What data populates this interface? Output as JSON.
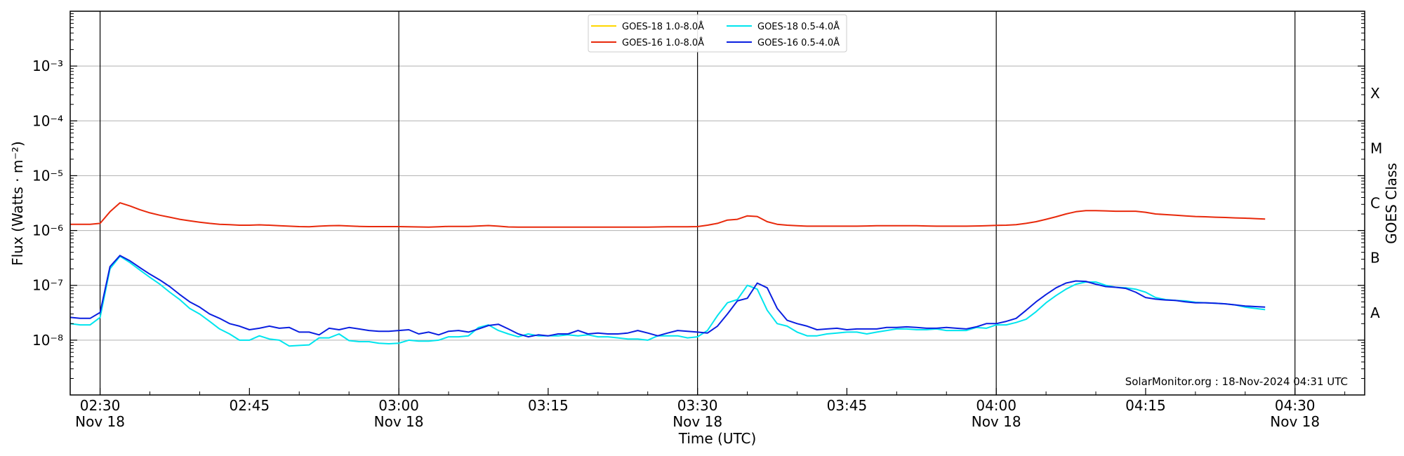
{
  "chart_data": {
    "type": "line",
    "ylabel": "Flux (Watts · m⁻²)",
    "ylabel_right": "GOES Class",
    "xlabel": "Time (UTC)",
    "y_scale": "log",
    "ylim": [
      1e-09,
      0.01
    ],
    "xlim": [
      "02:27",
      "04:37"
    ],
    "y_ticks": [
      {
        "value": 1e-08,
        "label": "10⁻⁸"
      },
      {
        "value": 1e-07,
        "label": "10⁻⁷"
      },
      {
        "value": 1e-06,
        "label": "10⁻⁶"
      },
      {
        "value": 1e-05,
        "label": "10⁻⁵"
      },
      {
        "value": 0.0001,
        "label": "10⁻⁴"
      },
      {
        "value": 0.001,
        "label": "10⁻³"
      }
    ],
    "x_ticks": [
      {
        "time": "02:30",
        "label": "02:30",
        "sublabel": "Nov 18"
      },
      {
        "time": "02:45",
        "label": "02:45",
        "sublabel": ""
      },
      {
        "time": "03:00",
        "label": "03:00",
        "sublabel": "Nov 18"
      },
      {
        "time": "03:15",
        "label": "03:15",
        "sublabel": ""
      },
      {
        "time": "03:30",
        "label": "03:30",
        "sublabel": "Nov 18"
      },
      {
        "time": "03:45",
        "label": "03:45",
        "sublabel": ""
      },
      {
        "time": "04:00",
        "label": "04:00",
        "sublabel": "Nov 18"
      },
      {
        "time": "04:15",
        "label": "04:15",
        "sublabel": ""
      },
      {
        "time": "04:30",
        "label": "04:30",
        "sublabel": "Nov 18"
      }
    ],
    "vertical_lines": [
      "02:30",
      "03:00",
      "03:30",
      "04:00",
      "04:30"
    ],
    "goes_classes": [
      {
        "label": "A",
        "value": 3.16e-08
      },
      {
        "label": "B",
        "value": 3.16e-07
      },
      {
        "label": "C",
        "value": 3.16e-06
      },
      {
        "label": "M",
        "value": 3.16e-05
      },
      {
        "label": "X",
        "value": 0.000316
      }
    ],
    "grid": "horizontal",
    "legend_position": "top-center",
    "credit": "SolarMonitor.org : 18-Nov-2024 04:31 UTC",
    "series": [
      {
        "name": "GOES-18 1.0-8.0Å",
        "color": "#ffd700",
        "x": [],
        "y": []
      },
      {
        "name": "GOES-16 1.0-8.0Å",
        "color": "#e8290b",
        "x": [
          "02:27",
          "02:28",
          "02:29",
          "02:30",
          "02:31",
          "02:32",
          "02:33",
          "02:34",
          "02:35",
          "02:36",
          "02:37",
          "02:38",
          "02:39",
          "02:40",
          "02:41",
          "02:42",
          "02:43",
          "02:44",
          "02:45",
          "02:46",
          "02:47",
          "02:48",
          "02:49",
          "02:50",
          "02:51",
          "02:52",
          "02:53",
          "02:54",
          "02:55",
          "02:56",
          "02:57",
          "02:58",
          "02:59",
          "03:00",
          "03:01",
          "03:02",
          "03:03",
          "03:04",
          "03:05",
          "03:06",
          "03:07",
          "03:08",
          "03:09",
          "03:10",
          "03:11",
          "03:12",
          "03:13",
          "03:14",
          "03:15",
          "03:16",
          "03:17",
          "03:18",
          "03:19",
          "03:20",
          "03:21",
          "03:22",
          "03:23",
          "03:24",
          "03:25",
          "03:26",
          "03:27",
          "03:28",
          "03:29",
          "03:30",
          "03:31",
          "03:32",
          "03:33",
          "03:34",
          "03:35",
          "03:36",
          "03:37",
          "03:38",
          "03:39",
          "03:40",
          "03:41",
          "03:42",
          "03:43",
          "03:44",
          "03:45",
          "03:46",
          "03:47",
          "03:48",
          "03:49",
          "03:50",
          "03:51",
          "03:52",
          "03:53",
          "03:54",
          "03:55",
          "03:56",
          "03:57",
          "03:58",
          "03:59",
          "04:00",
          "04:01",
          "04:02",
          "04:03",
          "04:04",
          "04:05",
          "04:06",
          "04:07",
          "04:08",
          "04:09",
          "04:10",
          "04:11",
          "04:12",
          "04:13",
          "04:14",
          "04:15",
          "04:16",
          "04:17",
          "04:18",
          "04:19",
          "04:20",
          "04:21",
          "04:22",
          "04:23",
          "04:24",
          "04:25",
          "04:26",
          "04:27"
        ],
        "y": [
          1.3e-06,
          1.3e-06,
          1.3e-06,
          1.35e-06,
          2.2e-06,
          3.2e-06,
          2.8e-06,
          2.4e-06,
          2.1e-06,
          1.9e-06,
          1.75e-06,
          1.6e-06,
          1.5e-06,
          1.42e-06,
          1.35e-06,
          1.3e-06,
          1.28e-06,
          1.25e-06,
          1.25e-06,
          1.27e-06,
          1.25e-06,
          1.22e-06,
          1.2e-06,
          1.18e-06,
          1.17e-06,
          1.2e-06,
          1.22e-06,
          1.23e-06,
          1.21e-06,
          1.19e-06,
          1.18e-06,
          1.18e-06,
          1.18e-06,
          1.18e-06,
          1.17e-06,
          1.16e-06,
          1.15e-06,
          1.17e-06,
          1.19e-06,
          1.19e-06,
          1.19e-06,
          1.21e-06,
          1.23e-06,
          1.2e-06,
          1.16e-06,
          1.15e-06,
          1.15e-06,
          1.15e-06,
          1.15e-06,
          1.15e-06,
          1.15e-06,
          1.15e-06,
          1.15e-06,
          1.15e-06,
          1.15e-06,
          1.15e-06,
          1.15e-06,
          1.15e-06,
          1.15e-06,
          1.16e-06,
          1.17e-06,
          1.17e-06,
          1.17e-06,
          1.18e-06,
          1.25e-06,
          1.35e-06,
          1.55e-06,
          1.6e-06,
          1.85e-06,
          1.8e-06,
          1.45e-06,
          1.3e-06,
          1.25e-06,
          1.22e-06,
          1.2e-06,
          1.2e-06,
          1.2e-06,
          1.2e-06,
          1.2e-06,
          1.2e-06,
          1.21e-06,
          1.22e-06,
          1.22e-06,
          1.22e-06,
          1.22e-06,
          1.22e-06,
          1.21e-06,
          1.2e-06,
          1.2e-06,
          1.2e-06,
          1.2e-06,
          1.21e-06,
          1.22e-06,
          1.24e-06,
          1.25e-06,
          1.28e-06,
          1.35e-06,
          1.45e-06,
          1.6e-06,
          1.78e-06,
          2e-06,
          2.2e-06,
          2.3e-06,
          2.3e-06,
          2.28e-06,
          2.25e-06,
          2.25e-06,
          2.25e-06,
          2.15e-06,
          2e-06,
          1.95e-06,
          1.9e-06,
          1.85e-06,
          1.8e-06,
          1.78e-06,
          1.75e-06,
          1.73e-06,
          1.7e-06,
          1.68e-06,
          1.65e-06,
          1.62e-06
        ]
      },
      {
        "name": "GOES-18 0.5-4.0Å",
        "color": "#00e5ee",
        "x": [
          "02:27",
          "02:28",
          "02:29",
          "02:30",
          "02:31",
          "02:32",
          "02:33",
          "02:34",
          "02:35",
          "02:36",
          "02:37",
          "02:38",
          "02:39",
          "02:40",
          "02:41",
          "02:42",
          "02:43",
          "02:44",
          "02:45",
          "02:46",
          "02:47",
          "02:48",
          "02:49",
          "02:50",
          "02:51",
          "02:52",
          "02:53",
          "02:54",
          "02:55",
          "02:56",
          "02:57",
          "02:58",
          "02:59",
          "03:00",
          "03:01",
          "03:02",
          "03:03",
          "03:04",
          "03:05",
          "03:06",
          "03:07",
          "03:08",
          "03:09",
          "03:10",
          "03:11",
          "03:12",
          "03:13",
          "03:14",
          "03:15",
          "03:16",
          "03:17",
          "03:18",
          "03:19",
          "03:20",
          "03:21",
          "03:22",
          "03:23",
          "03:24",
          "03:25",
          "03:26",
          "03:27",
          "03:28",
          "03:29",
          "03:30",
          "03:31",
          "03:32",
          "03:33",
          "03:34",
          "03:35",
          "03:36",
          "03:37",
          "03:38",
          "03:39",
          "03:40",
          "03:41",
          "03:42",
          "03:43",
          "03:44",
          "03:45",
          "03:46",
          "03:47",
          "03:48",
          "03:49",
          "03:50",
          "03:51",
          "03:52",
          "03:53",
          "03:54",
          "03:55",
          "03:56",
          "03:57",
          "03:58",
          "03:59",
          "04:00",
          "04:01",
          "04:02",
          "04:03",
          "04:04",
          "04:05",
          "04:06",
          "04:07",
          "04:08",
          "04:09",
          "04:10",
          "04:11",
          "04:12",
          "04:13",
          "04:14",
          "04:15",
          "04:16",
          "04:17",
          "04:18",
          "04:19",
          "04:20",
          "04:21",
          "04:22",
          "04:23",
          "04:24",
          "04:25",
          "04:26",
          "04:27"
        ],
        "y": [
          2e-08,
          1.9e-08,
          1.9e-08,
          2.6e-08,
          2e-07,
          3.4e-07,
          2.6e-07,
          1.9e-07,
          1.4e-07,
          1.05e-07,
          7.5e-08,
          5.5e-08,
          3.8e-08,
          3e-08,
          2.2e-08,
          1.6e-08,
          1.3e-08,
          1e-08,
          1e-08,
          1.2e-08,
          1.05e-08,
          1e-08,
          7.8e-09,
          8e-09,
          8.2e-09,
          1.1e-08,
          1.1e-08,
          1.3e-08,
          9.8e-09,
          9.4e-09,
          9.4e-09,
          8.8e-09,
          8.6e-09,
          8.8e-09,
          1e-08,
          9.6e-09,
          9.6e-09,
          1e-08,
          1.15e-08,
          1.15e-08,
          1.2e-08,
          1.7e-08,
          1.9e-08,
          1.5e-08,
          1.3e-08,
          1.15e-08,
          1.3e-08,
          1.2e-08,
          1.2e-08,
          1.2e-08,
          1.25e-08,
          1.2e-08,
          1.25e-08,
          1.15e-08,
          1.15e-08,
          1.1e-08,
          1.05e-08,
          1.05e-08,
          1e-08,
          1.2e-08,
          1.2e-08,
          1.2e-08,
          1.1e-08,
          1.15e-08,
          1.5e-08,
          2.8e-08,
          4.8e-08,
          5.5e-08,
          1e-07,
          8.5e-08,
          3.5e-08,
          2e-08,
          1.8e-08,
          1.4e-08,
          1.2e-08,
          1.2e-08,
          1.3e-08,
          1.35e-08,
          1.4e-08,
          1.4e-08,
          1.3e-08,
          1.4e-08,
          1.5e-08,
          1.6e-08,
          1.6e-08,
          1.55e-08,
          1.55e-08,
          1.6e-08,
          1.5e-08,
          1.5e-08,
          1.5e-08,
          1.7e-08,
          1.65e-08,
          1.9e-08,
          1.9e-08,
          2.1e-08,
          2.4e-08,
          3.3e-08,
          4.8e-08,
          6.5e-08,
          8.5e-08,
          1.05e-07,
          1.15e-07,
          1.15e-07,
          1e-07,
          9.2e-08,
          9e-08,
          8.5e-08,
          7.5e-08,
          6e-08,
          5.5e-08,
          5.3e-08,
          5.2e-08,
          4.9e-08,
          4.8e-08,
          4.7e-08,
          4.6e-08,
          4.4e-08,
          4e-08,
          3.8e-08,
          3.6e-08
        ]
      },
      {
        "name": "GOES-16 0.5-4.0Å",
        "color": "#0a1fe0",
        "x": [
          "02:27",
          "02:28",
          "02:29",
          "02:30",
          "02:31",
          "02:32",
          "02:33",
          "02:34",
          "02:35",
          "02:36",
          "02:37",
          "02:38",
          "02:39",
          "02:40",
          "02:41",
          "02:42",
          "02:43",
          "02:44",
          "02:45",
          "02:46",
          "02:47",
          "02:48",
          "02:49",
          "02:50",
          "02:51",
          "02:52",
          "02:53",
          "02:54",
          "02:55",
          "02:56",
          "02:57",
          "02:58",
          "02:59",
          "03:00",
          "03:01",
          "03:02",
          "03:03",
          "03:04",
          "03:05",
          "03:06",
          "03:07",
          "03:08",
          "03:09",
          "03:10",
          "03:11",
          "03:12",
          "03:13",
          "03:14",
          "03:15",
          "03:16",
          "03:17",
          "03:18",
          "03:19",
          "03:20",
          "03:21",
          "03:22",
          "03:23",
          "03:24",
          "03:25",
          "03:26",
          "03:27",
          "03:28",
          "03:29",
          "03:30",
          "03:31",
          "03:32",
          "03:33",
          "03:34",
          "03:35",
          "03:36",
          "03:37",
          "03:38",
          "03:39",
          "03:40",
          "03:41",
          "03:42",
          "03:43",
          "03:44",
          "03:45",
          "03:46",
          "03:47",
          "03:48",
          "03:49",
          "03:50",
          "03:51",
          "03:52",
          "03:53",
          "03:54",
          "03:55",
          "03:56",
          "03:57",
          "03:58",
          "03:59",
          "04:00",
          "04:01",
          "04:02",
          "04:03",
          "04:04",
          "04:05",
          "04:06",
          "04:07",
          "04:08",
          "04:09",
          "04:10",
          "04:11",
          "04:12",
          "04:13",
          "04:14",
          "04:15",
          "04:16",
          "04:17",
          "04:18",
          "04:19",
          "04:20",
          "04:21",
          "04:22",
          "04:23",
          "04:24",
          "04:25",
          "04:26",
          "04:27"
        ],
        "y": [
          2.6e-08,
          2.5e-08,
          2.5e-08,
          3.2e-08,
          2.2e-07,
          3.5e-07,
          2.8e-07,
          2.1e-07,
          1.6e-07,
          1.25e-07,
          9.5e-08,
          6.8e-08,
          5e-08,
          4e-08,
          3e-08,
          2.5e-08,
          2e-08,
          1.8e-08,
          1.55e-08,
          1.65e-08,
          1.8e-08,
          1.65e-08,
          1.7e-08,
          1.4e-08,
          1.4e-08,
          1.25e-08,
          1.65e-08,
          1.55e-08,
          1.7e-08,
          1.6e-08,
          1.5e-08,
          1.45e-08,
          1.45e-08,
          1.5e-08,
          1.55e-08,
          1.3e-08,
          1.4e-08,
          1.25e-08,
          1.45e-08,
          1.5e-08,
          1.4e-08,
          1.6e-08,
          1.85e-08,
          1.95e-08,
          1.6e-08,
          1.3e-08,
          1.15e-08,
          1.25e-08,
          1.2e-08,
          1.3e-08,
          1.3e-08,
          1.5e-08,
          1.3e-08,
          1.35e-08,
          1.3e-08,
          1.3e-08,
          1.35e-08,
          1.5e-08,
          1.35e-08,
          1.2e-08,
          1.35e-08,
          1.5e-08,
          1.45e-08,
          1.4e-08,
          1.35e-08,
          1.8e-08,
          3e-08,
          5.2e-08,
          5.8e-08,
          1.1e-07,
          9e-08,
          3.8e-08,
          2.3e-08,
          2e-08,
          1.8e-08,
          1.55e-08,
          1.6e-08,
          1.65e-08,
          1.55e-08,
          1.6e-08,
          1.6e-08,
          1.6e-08,
          1.7e-08,
          1.7e-08,
          1.75e-08,
          1.7e-08,
          1.65e-08,
          1.65e-08,
          1.7e-08,
          1.65e-08,
          1.6e-08,
          1.75e-08,
          2e-08,
          2e-08,
          2.2e-08,
          2.5e-08,
          3.5e-08,
          5e-08,
          6.8e-08,
          9e-08,
          1.1e-07,
          1.2e-07,
          1.18e-07,
          1.05e-07,
          9.5e-08,
          9.2e-08,
          8.8e-08,
          7.5e-08,
          6e-08,
          5.6e-08,
          5.4e-08,
          5.3e-08,
          5e-08,
          4.8e-08,
          4.8e-08,
          4.7e-08,
          4.6e-08,
          4.4e-08,
          4.2e-08,
          4.1e-08,
          4e-08
        ]
      }
    ]
  }
}
